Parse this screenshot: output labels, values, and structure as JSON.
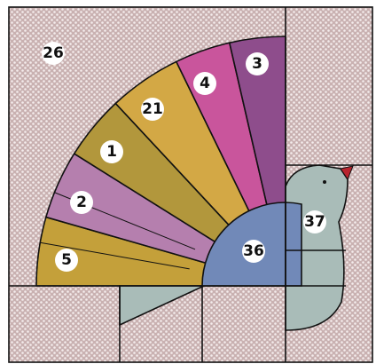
{
  "nodes": [
    {
      "label": "26"
    },
    {
      "label": "3"
    },
    {
      "label": "4"
    },
    {
      "label": "21"
    },
    {
      "label": "1"
    },
    {
      "label": "2"
    },
    {
      "label": "5"
    },
    {
      "label": "36"
    },
    {
      "label": "37"
    }
  ]
}
